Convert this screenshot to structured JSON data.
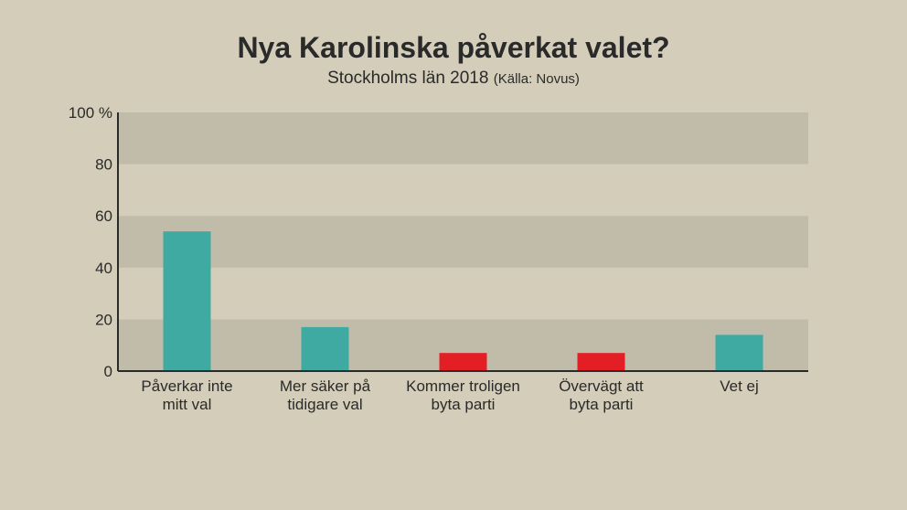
{
  "chart_data": {
    "type": "bar",
    "title": "Nya Karolinska påverkat valet?",
    "subtitle": "Stockholms län 2018",
    "source": "(Källa: Novus)",
    "categories": [
      [
        "Påverkar inte",
        "mitt val"
      ],
      [
        "Mer säker på",
        "tidigare val"
      ],
      [
        "Kommer troligen",
        "byta parti"
      ],
      [
        "Övervägt att",
        "byta parti"
      ],
      [
        "Vet ej"
      ]
    ],
    "values": [
      54,
      17,
      7,
      7,
      14
    ],
    "colors": [
      "#3eaaa2",
      "#3eaaa2",
      "#e31e24",
      "#e31e24",
      "#3eaaa2"
    ],
    "ylim": [
      0,
      100
    ],
    "yticks": [
      0,
      20,
      40,
      60,
      80,
      100
    ],
    "ytick_labels": [
      "0",
      "20",
      "40",
      "60",
      "80",
      "100 %"
    ],
    "grid": "alternating-bands"
  }
}
